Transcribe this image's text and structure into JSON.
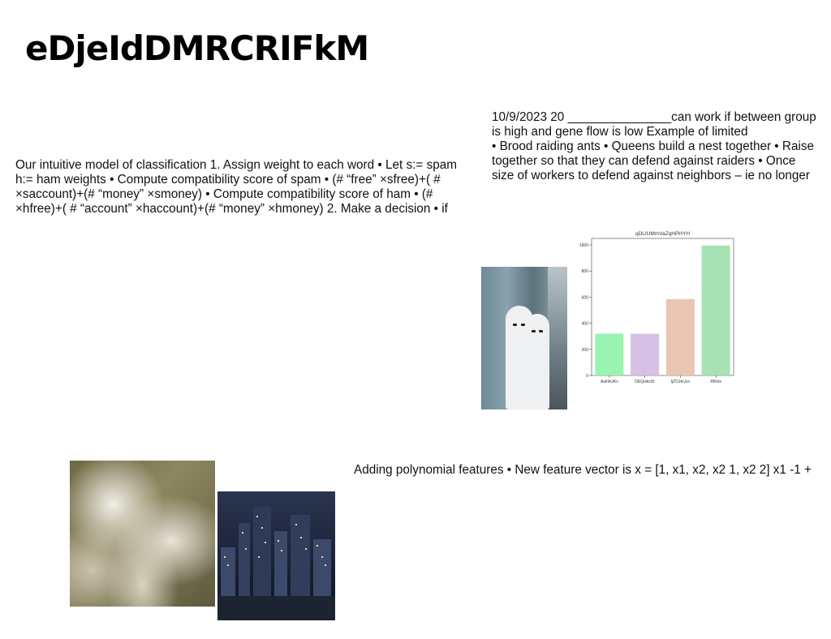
{
  "title": "eDjeIdDMRCRIFkM",
  "left_text": {
    "lines": [
      "Our intuitive model of classification 1. Assign weight to each word • Let s:= spam",
      "h:= ham weights • Compute compatibility score of spam • (# “free” ×sfree)+( #",
      "×saccount)+(# “money” ×smoney) • Compute compatibility score of ham • (#",
      "×hfree)+( # “account” ×haccount)+(# “money” ×hmoney) 2. Make a decision • if"
    ]
  },
  "right_text": {
    "lines": [
      "10/9/2023 20 _______________can work if between group",
      "is high and gene flow is low Example of limited",
      "• Brood raiding ants • Queens build a nest together • Raise",
      "together so that they can defend against raiders • Once",
      "size of workers to defend against neighbors – ie no longer"
    ]
  },
  "bottom_text": {
    "lines": [
      "Adding polynomial features • New feature vector is x = [1, x1, x2, x2 1, x2 2] x1 -1 +"
    ]
  },
  "images": {
    "ghosts": "photo of two people in white ghost costumes with sunglasses on a street",
    "water": "photo of churning white water",
    "city": "photo of a city skyline at night"
  },
  "chart_data": {
    "type": "bar",
    "title": "qDLIUMmVaZqHPHYH",
    "categories": [
      "AuFAUKv",
      "DEQwkcDr",
      "IjZOJeUcn",
      "RRztx"
    ],
    "values": [
      320,
      320,
      585,
      995
    ],
    "colors": [
      "#98f4b0",
      "#d6c0e6",
      "#e8c6b2",
      "#a6e2b4"
    ],
    "ylim": [
      0,
      1050
    ],
    "yticks": [
      0,
      200,
      400,
      600,
      800,
      1000
    ],
    "xlabel": "",
    "ylabel": "",
    "grid": false
  }
}
